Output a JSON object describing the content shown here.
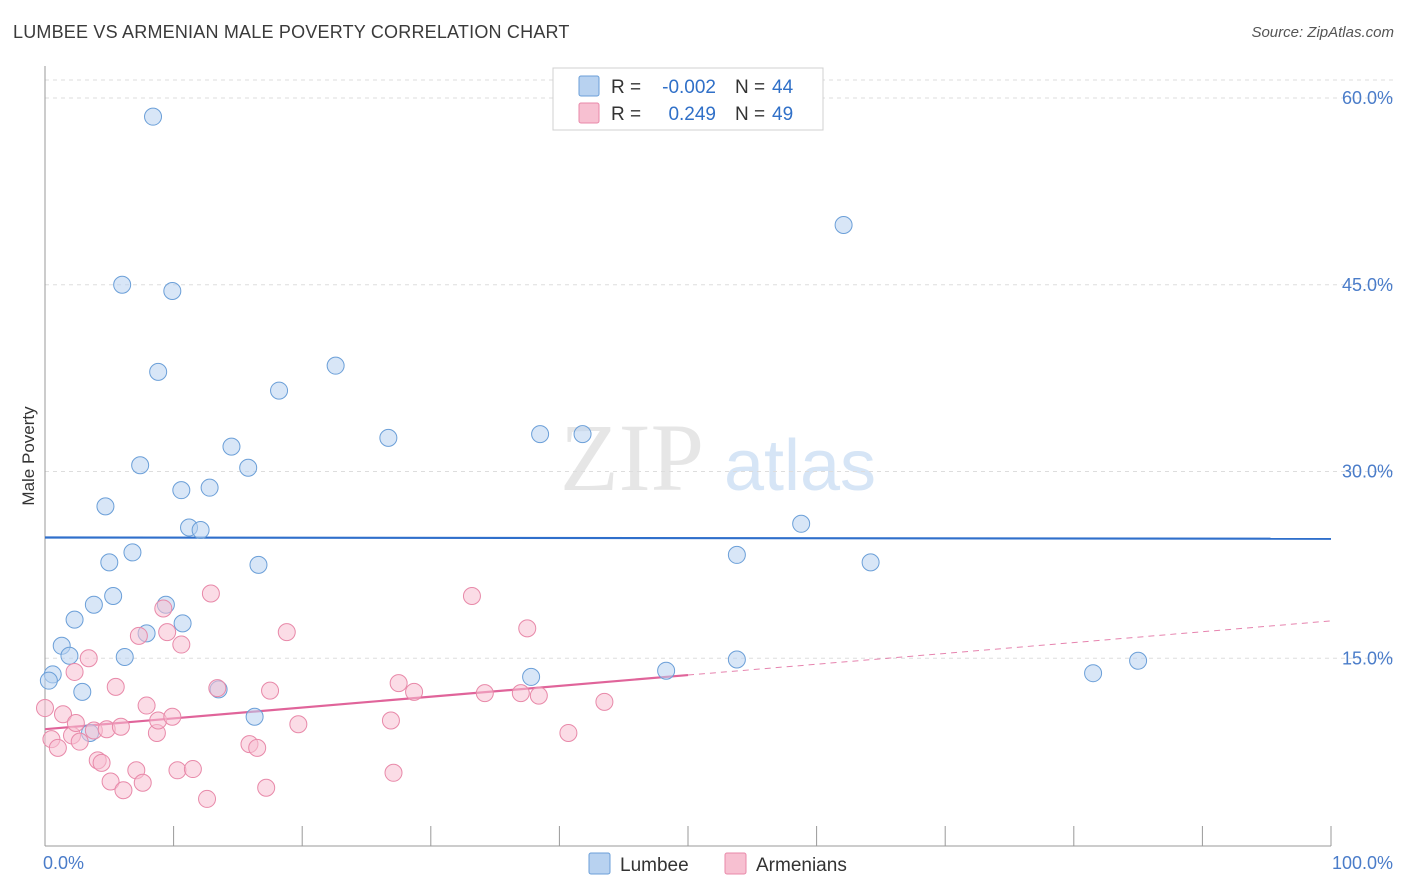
{
  "title": "LUMBEE VS ARMENIAN MALE POVERTY CORRELATION CHART",
  "source": "Source: ZipAtlas.com",
  "watermark": {
    "zip": "ZIP",
    "atlas": "atlas"
  },
  "colors": {
    "lumbee_fill": "#b8d2f0",
    "lumbee_stroke": "#6b9fd8",
    "lumbee_line": "#2f6fcb",
    "armenian_fill": "#f7c0d1",
    "armenian_stroke": "#e889a9",
    "armenian_line": "#e0649a",
    "axis_label": "#4a7cc9",
    "grid": "#dddddd"
  },
  "legend": {
    "r_label": "R =",
    "n_label": "N =",
    "lumbee": {
      "r": "-0.002",
      "n": "44"
    },
    "armenian": {
      "r": "0.249",
      "n": "49"
    }
  },
  "chart_data": {
    "type": "scatter",
    "title": "LUMBEE VS ARMENIAN MALE POVERTY CORRELATION CHART",
    "xlabel": "",
    "ylabel": "Male Poverty",
    "xlim": [
      0,
      100
    ],
    "ylim": [
      0,
      60
    ],
    "x_tick_labels": [
      "0.0%",
      "100.0%"
    ],
    "y_ticks": [
      15,
      30,
      45,
      60
    ],
    "y_tick_labels": [
      "15.0%",
      "30.0%",
      "45.0%",
      "60.0%"
    ],
    "series": [
      {
        "name": "Lumbee",
        "r": -0.002,
        "n": 44,
        "trend": {
          "x0": 0,
          "y0": 24.7,
          "x1": 100,
          "y1": 24.6,
          "dashed_from": null
        },
        "points": [
          [
            8.4,
            58.5
          ],
          [
            6.0,
            45.0
          ],
          [
            9.9,
            44.5
          ],
          [
            8.8,
            38.0
          ],
          [
            22.6,
            38.5
          ],
          [
            18.2,
            36.5
          ],
          [
            26.7,
            32.7
          ],
          [
            38.5,
            33.0
          ],
          [
            41.8,
            33.0
          ],
          [
            14.5,
            32.0
          ],
          [
            7.4,
            30.5
          ],
          [
            15.8,
            30.3
          ],
          [
            10.6,
            28.5
          ],
          [
            12.8,
            28.7
          ],
          [
            4.7,
            27.2
          ],
          [
            11.2,
            25.5
          ],
          [
            12.1,
            25.3
          ],
          [
            5.0,
            22.7
          ],
          [
            6.8,
            23.5
          ],
          [
            16.6,
            22.5
          ],
          [
            5.3,
            20.0
          ],
          [
            3.8,
            19.3
          ],
          [
            9.4,
            19.3
          ],
          [
            2.3,
            18.1
          ],
          [
            10.7,
            17.8
          ],
          [
            7.9,
            17.0
          ],
          [
            1.3,
            16.0
          ],
          [
            1.9,
            15.2
          ],
          [
            6.2,
            15.1
          ],
          [
            0.6,
            13.7
          ],
          [
            0.3,
            13.2
          ],
          [
            2.9,
            12.3
          ],
          [
            13.5,
            12.5
          ],
          [
            16.3,
            10.3
          ],
          [
            3.5,
            9.0
          ],
          [
            37.8,
            13.5
          ],
          [
            48.3,
            14.0
          ],
          [
            58.8,
            25.8
          ],
          [
            53.8,
            23.3
          ],
          [
            62.1,
            49.8
          ],
          [
            64.2,
            22.7
          ],
          [
            53.8,
            14.9
          ],
          [
            81.5,
            13.8
          ],
          [
            85.0,
            14.8
          ]
        ]
      },
      {
        "name": "Armenians",
        "r": 0.249,
        "n": 49,
        "trend": {
          "x0": 0,
          "y0": 9.3,
          "x1": 100,
          "y1": 18.0,
          "dashed_from": 50
        },
        "points": [
          [
            0.0,
            11.0
          ],
          [
            0.5,
            8.5
          ],
          [
            1.0,
            7.8
          ],
          [
            1.4,
            10.5
          ],
          [
            2.1,
            8.8
          ],
          [
            2.3,
            13.9
          ],
          [
            2.4,
            9.8
          ],
          [
            2.7,
            8.3
          ],
          [
            3.4,
            15.0
          ],
          [
            3.8,
            9.2
          ],
          [
            4.1,
            6.8
          ],
          [
            4.4,
            6.6
          ],
          [
            4.8,
            9.3
          ],
          [
            5.1,
            5.1
          ],
          [
            5.5,
            12.7
          ],
          [
            5.9,
            9.5
          ],
          [
            6.1,
            4.4
          ],
          [
            7.1,
            6.0
          ],
          [
            7.3,
            16.8
          ],
          [
            7.6,
            5.0
          ],
          [
            7.9,
            11.2
          ],
          [
            8.7,
            9.0
          ],
          [
            8.8,
            10.0
          ],
          [
            9.2,
            19.0
          ],
          [
            9.5,
            17.1
          ],
          [
            9.9,
            10.3
          ],
          [
            10.3,
            6.0
          ],
          [
            10.6,
            16.1
          ],
          [
            11.5,
            6.1
          ],
          [
            12.6,
            3.7
          ],
          [
            12.9,
            20.2
          ],
          [
            13.4,
            12.6
          ],
          [
            15.9,
            8.1
          ],
          [
            16.5,
            7.8
          ],
          [
            17.2,
            4.6
          ],
          [
            17.5,
            12.4
          ],
          [
            18.8,
            17.1
          ],
          [
            19.7,
            9.7
          ],
          [
            26.9,
            10.0
          ],
          [
            27.1,
            5.8
          ],
          [
            27.5,
            13.0
          ],
          [
            28.7,
            12.3
          ],
          [
            33.2,
            20.0
          ],
          [
            34.2,
            12.2
          ],
          [
            37.0,
            12.2
          ],
          [
            37.5,
            17.4
          ],
          [
            38.4,
            12.0
          ],
          [
            40.7,
            9.0
          ],
          [
            43.5,
            11.5
          ]
        ]
      }
    ]
  },
  "bottom_legend": [
    {
      "label": "Lumbee"
    },
    {
      "label": "Armenians"
    }
  ]
}
